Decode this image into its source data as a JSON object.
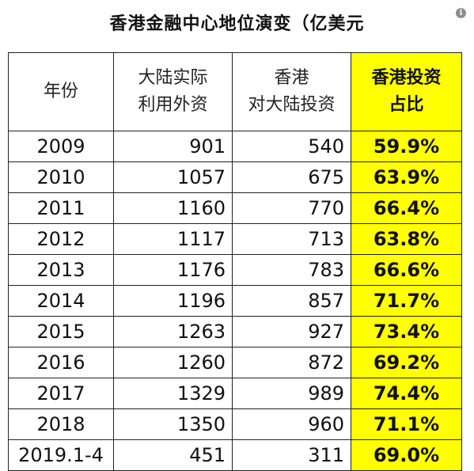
{
  "title": "香港金融中心地位演变（亿美元",
  "info_icon": "i",
  "headers": {
    "year": "年份",
    "mainland_fdi": [
      "大陆实际",
      "利用外资"
    ],
    "hk_invest": [
      "香港",
      "对大陆投资"
    ],
    "share": [
      "香港投资",
      "占比"
    ]
  },
  "rows": [
    {
      "year": "2009",
      "fdi": "901",
      "hk": "540",
      "share": "59.9%"
    },
    {
      "year": "2010",
      "fdi": "1057",
      "hk": "675",
      "share": "63.9%"
    },
    {
      "year": "2011",
      "fdi": "1160",
      "hk": "770",
      "share": "66.4%"
    },
    {
      "year": "2012",
      "fdi": "1117",
      "hk": "713",
      "share": "63.8%"
    },
    {
      "year": "2013",
      "fdi": "1176",
      "hk": "783",
      "share": "66.6%"
    },
    {
      "year": "2014",
      "fdi": "1196",
      "hk": "857",
      "share": "71.7%"
    },
    {
      "year": "2015",
      "fdi": "1263",
      "hk": "927",
      "share": "73.4%"
    },
    {
      "year": "2016",
      "fdi": "1260",
      "hk": "872",
      "share": "69.2%"
    },
    {
      "year": "2017",
      "fdi": "1329",
      "hk": "989",
      "share": "74.4%"
    },
    {
      "year": "2018",
      "fdi": "1350",
      "hk": "960",
      "share": "71.1%"
    },
    {
      "year": "2019.1-4",
      "fdi": "451",
      "hk": "311",
      "share": "69.0%"
    }
  ],
  "colors": {
    "highlight": "#ffff00"
  }
}
